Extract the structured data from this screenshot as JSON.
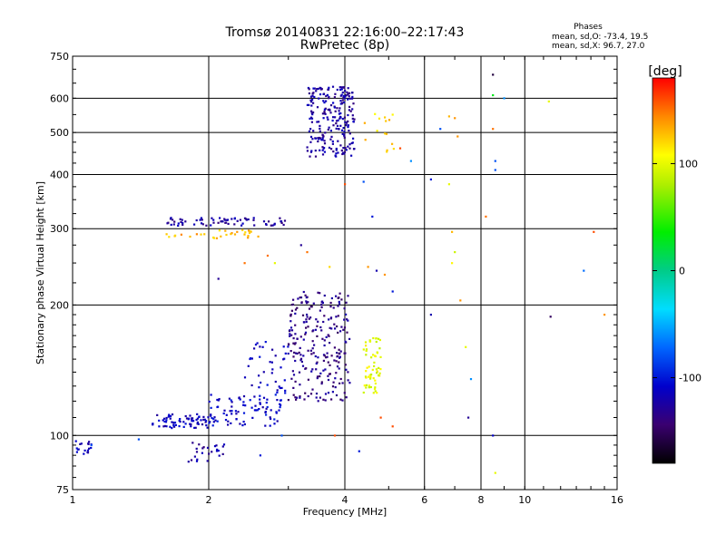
{
  "chart_data": {
    "type": "scatter",
    "title": "Tromsø 20140831 22:16:00–22:17:43",
    "subtitle": "RwPretec (8p)",
    "xlabel": "Frequency [MHz]",
    "ylabel": "Stationary phase Virtual Height [km]",
    "x_scale": "log",
    "y_scale": "log",
    "xlim": [
      1,
      16
    ],
    "ylim": [
      75,
      750
    ],
    "x_ticks": [
      1,
      2,
      4,
      6,
      8,
      10,
      16
    ],
    "y_ticks": [
      75,
      100,
      200,
      300,
      400,
      500,
      600,
      750
    ],
    "grid": true,
    "phase_stats": {
      "title": "Phases",
      "line_o": "mean, sd,O: -73.4, 19.5",
      "line_x": "mean, sd,X:  96.7, 27.0"
    },
    "colorbar": {
      "label": "[deg]",
      "range": [
        -180,
        180
      ],
      "ticks": [
        100,
        0,
        -100
      ]
    },
    "clusters": [
      {
        "f": [
          1.0,
          1.1
        ],
        "h": [
          90,
          98
        ],
        "phase": -115,
        "n": 18
      },
      {
        "f": [
          1.5,
          2.0
        ],
        "h": [
          104,
          112
        ],
        "phase": -115,
        "n": 70
      },
      {
        "f": [
          2.0,
          2.9
        ],
        "h": [
          105,
          125
        ],
        "phase": -110,
        "n": 90
      },
      {
        "f": [
          2.4,
          3.0
        ],
        "h": [
          125,
          165
        ],
        "phase": -115,
        "n": 40
      },
      {
        "f": [
          1.8,
          2.2
        ],
        "h": [
          87,
          97
        ],
        "phase": -125,
        "n": 25
      },
      {
        "f": [
          3.0,
          4.1
        ],
        "h": [
          120,
          215
        ],
        "phase": -135,
        "n": 240
      },
      {
        "f": [
          4.4,
          4.8
        ],
        "h": [
          125,
          170
        ],
        "phase": 100,
        "n": 60
      },
      {
        "f": [
          1.6,
          3.0
        ],
        "h": [
          305,
          318
        ],
        "phase": -125,
        "n": 70
      },
      {
        "f": [
          1.6,
          2.6
        ],
        "h": [
          285,
          298
        ],
        "phase": 130,
        "n": 30
      },
      {
        "f": [
          3.3,
          4.2
        ],
        "h": [
          440,
          640
        ],
        "phase": -125,
        "n": 230
      },
      {
        "f": [
          4.4,
          5.2
        ],
        "h": [
          450,
          560
        ],
        "phase": 120,
        "n": 14
      }
    ],
    "points": [
      {
        "x": 8.5,
        "y": 680,
        "phase": -160
      },
      {
        "x": 8.5,
        "y": 610,
        "phase": 30
      },
      {
        "x": 8.5,
        "y": 510,
        "phase": 150
      },
      {
        "x": 8.6,
        "y": 430,
        "phase": -80
      },
      {
        "x": 8.6,
        "y": 410,
        "phase": -80
      },
      {
        "x": 9.0,
        "y": 600,
        "phase": -60
      },
      {
        "x": 11.3,
        "y": 590,
        "phase": 100
      },
      {
        "x": 6.5,
        "y": 510,
        "phase": -80
      },
      {
        "x": 6.8,
        "y": 545,
        "phase": 130
      },
      {
        "x": 7.0,
        "y": 540,
        "phase": 140
      },
      {
        "x": 7.1,
        "y": 490,
        "phase": 140
      },
      {
        "x": 6.2,
        "y": 390,
        "phase": -100
      },
      {
        "x": 6.8,
        "y": 380,
        "phase": 100
      },
      {
        "x": 8.2,
        "y": 320,
        "phase": 150
      },
      {
        "x": 6.9,
        "y": 295,
        "phase": 130
      },
      {
        "x": 7.0,
        "y": 265,
        "phase": 90
      },
      {
        "x": 6.9,
        "y": 250,
        "phase": 110
      },
      {
        "x": 7.2,
        "y": 205,
        "phase": 140
      },
      {
        "x": 6.2,
        "y": 190,
        "phase": -120
      },
      {
        "x": 7.4,
        "y": 160,
        "phase": 100
      },
      {
        "x": 7.6,
        "y": 135,
        "phase": -60
      },
      {
        "x": 7.5,
        "y": 110,
        "phase": -130
      },
      {
        "x": 8.5,
        "y": 100,
        "phase": -110
      },
      {
        "x": 8.6,
        "y": 82,
        "phase": 100
      },
      {
        "x": 11.4,
        "y": 188,
        "phase": -150
      },
      {
        "x": 13.5,
        "y": 240,
        "phase": -70
      },
      {
        "x": 14.2,
        "y": 295,
        "phase": 160
      },
      {
        "x": 15.0,
        "y": 190,
        "phase": 140
      },
      {
        "x": 4.6,
        "y": 320,
        "phase": -100
      },
      {
        "x": 4.4,
        "y": 385,
        "phase": -80
      },
      {
        "x": 4.0,
        "y": 380,
        "phase": 160
      },
      {
        "x": 5.1,
        "y": 550,
        "phase": 110
      },
      {
        "x": 5.3,
        "y": 460,
        "phase": 160
      },
      {
        "x": 5.6,
        "y": 430,
        "phase": -60
      },
      {
        "x": 4.5,
        "y": 245,
        "phase": 140
      },
      {
        "x": 4.7,
        "y": 240,
        "phase": -120
      },
      {
        "x": 4.9,
        "y": 235,
        "phase": 140
      },
      {
        "x": 5.1,
        "y": 215,
        "phase": -100
      },
      {
        "x": 4.8,
        "y": 110,
        "phase": 160
      },
      {
        "x": 5.1,
        "y": 105,
        "phase": 160
      },
      {
        "x": 3.8,
        "y": 100,
        "phase": 160
      },
      {
        "x": 4.3,
        "y": 92,
        "phase": -100
      },
      {
        "x": 2.1,
        "y": 230,
        "phase": -130
      },
      {
        "x": 2.4,
        "y": 250,
        "phase": 150
      },
      {
        "x": 2.7,
        "y": 260,
        "phase": 150
      },
      {
        "x": 3.2,
        "y": 275,
        "phase": -130
      },
      {
        "x": 3.3,
        "y": 265,
        "phase": 150
      },
      {
        "x": 3.7,
        "y": 245,
        "phase": 120
      },
      {
        "x": 2.8,
        "y": 250,
        "phase": 100
      },
      {
        "x": 1.1,
        "y": 95,
        "phase": -80
      },
      {
        "x": 1.4,
        "y": 98,
        "phase": -80
      },
      {
        "x": 2.6,
        "y": 90,
        "phase": -100
      },
      {
        "x": 2.9,
        "y": 100,
        "phase": -80
      }
    ]
  }
}
